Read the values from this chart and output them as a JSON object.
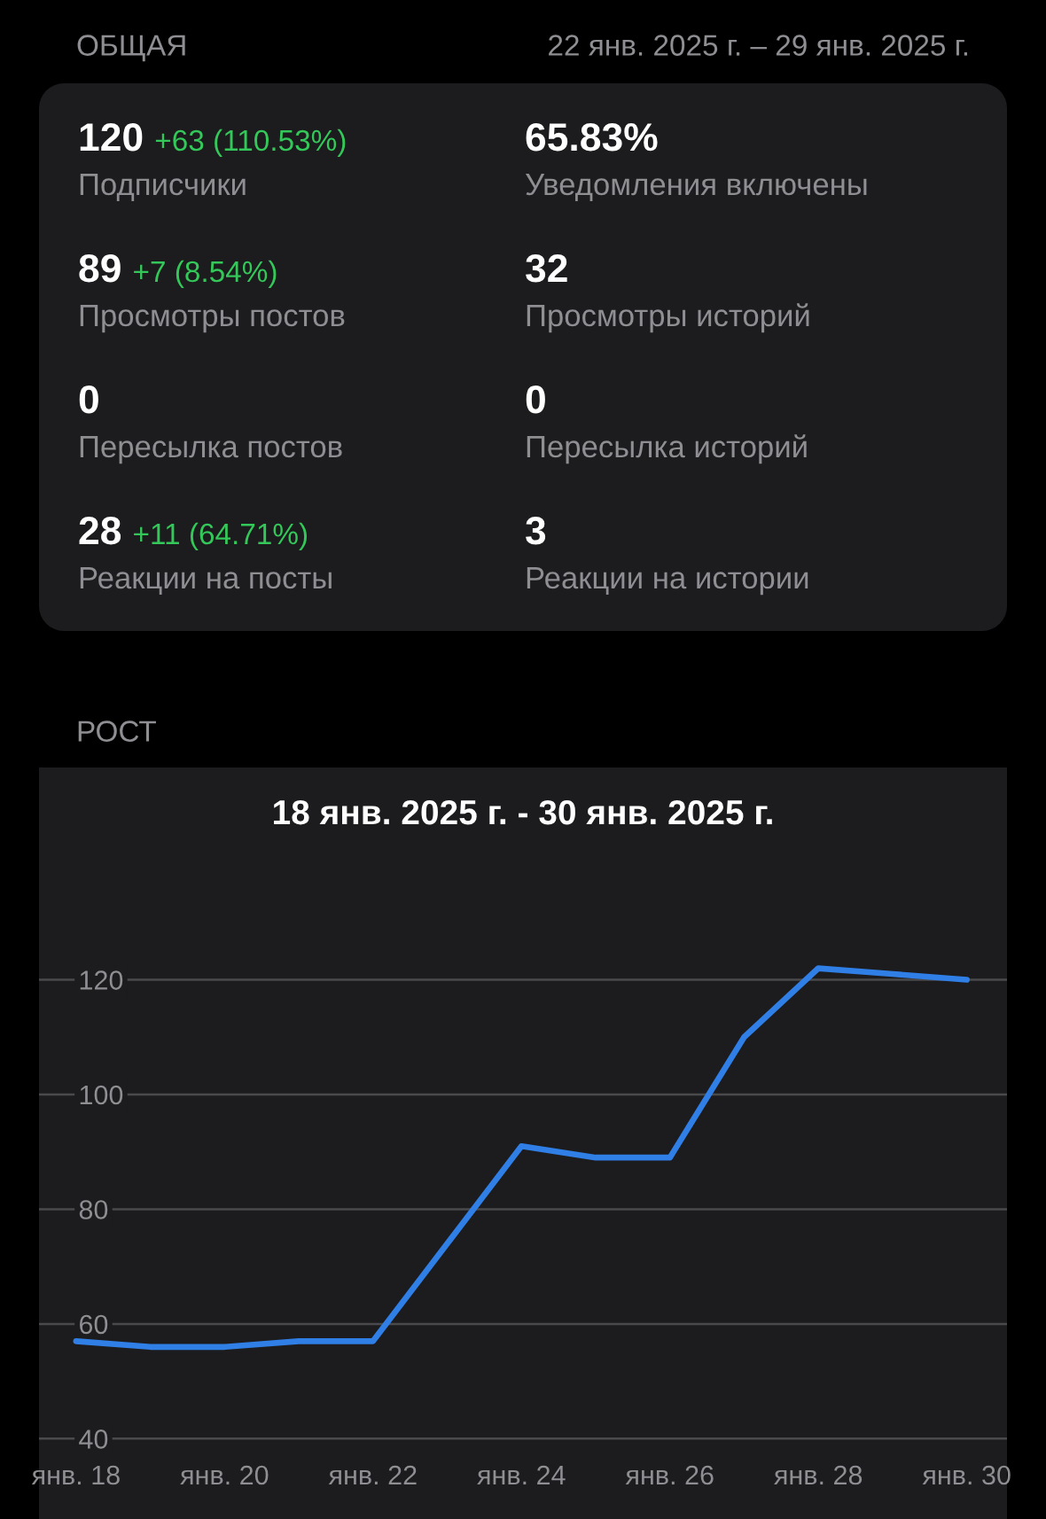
{
  "chart_data": [
    {
      "type": "other",
      "title": "ОБЩАЯ",
      "subtitle": "22 янв. 2025 г. – 29 янв. 2025 г.",
      "annotations": [
        "120",
        "+63 (110.53%)",
        "Подписчики",
        "65.83%",
        null,
        "Уведомления включены",
        "89",
        "+7 (8.54%)",
        "Просмотры постов",
        "32",
        null,
        "Просмотры историй",
        "0",
        null,
        "Пересылка постов",
        "0",
        null,
        "Пересылка историй",
        "28",
        "+11 (64.71%)",
        "Реакции на посты",
        "3",
        null,
        "Реакции на истории"
      ]
    },
    {
      "type": "line",
      "title": "РОСТ",
      "subtitle": "18 янв. 2025 г. - 30 янв. 2025 г.",
      "x": [
        "2025-01-18",
        "2025-01-19",
        "2025-01-20",
        "2025-01-21",
        "2025-01-22",
        "2025-01-23",
        "2025-01-24",
        "2025-01-25",
        "2025-01-26",
        "2025-01-27",
        "2025-01-28",
        "2025-01-29",
        "2025-01-30"
      ],
      "series": [
        {
          "color": "#2f7fe6",
          "values": [
            57,
            56,
            56,
            57,
            57,
            74,
            91,
            89,
            89,
            110,
            122,
            121,
            120
          ]
        }
      ],
      "xlim": [
        "2025-01-17T12:00",
        "2025-01-30T13:00"
      ],
      "xticks": [
        {
          "value": "2025-01-18",
          "label": "янв. 18"
        },
        {
          "value": "2025-01-20",
          "label": "янв. 20"
        },
        {
          "value": "2025-01-22",
          "label": "янв. 22"
        },
        {
          "value": "2025-01-24",
          "label": "янв. 24"
        },
        {
          "value": "2025-01-26",
          "label": "янв. 26"
        },
        {
          "value": "2025-01-28",
          "label": "янв. 28"
        },
        {
          "value": "2025-01-30",
          "label": "янв. 30"
        }
      ],
      "ylim": [
        26,
        157
      ],
      "yticks": [
        40,
        60,
        80,
        100,
        120
      ],
      "grid": "y"
    }
  ]
}
